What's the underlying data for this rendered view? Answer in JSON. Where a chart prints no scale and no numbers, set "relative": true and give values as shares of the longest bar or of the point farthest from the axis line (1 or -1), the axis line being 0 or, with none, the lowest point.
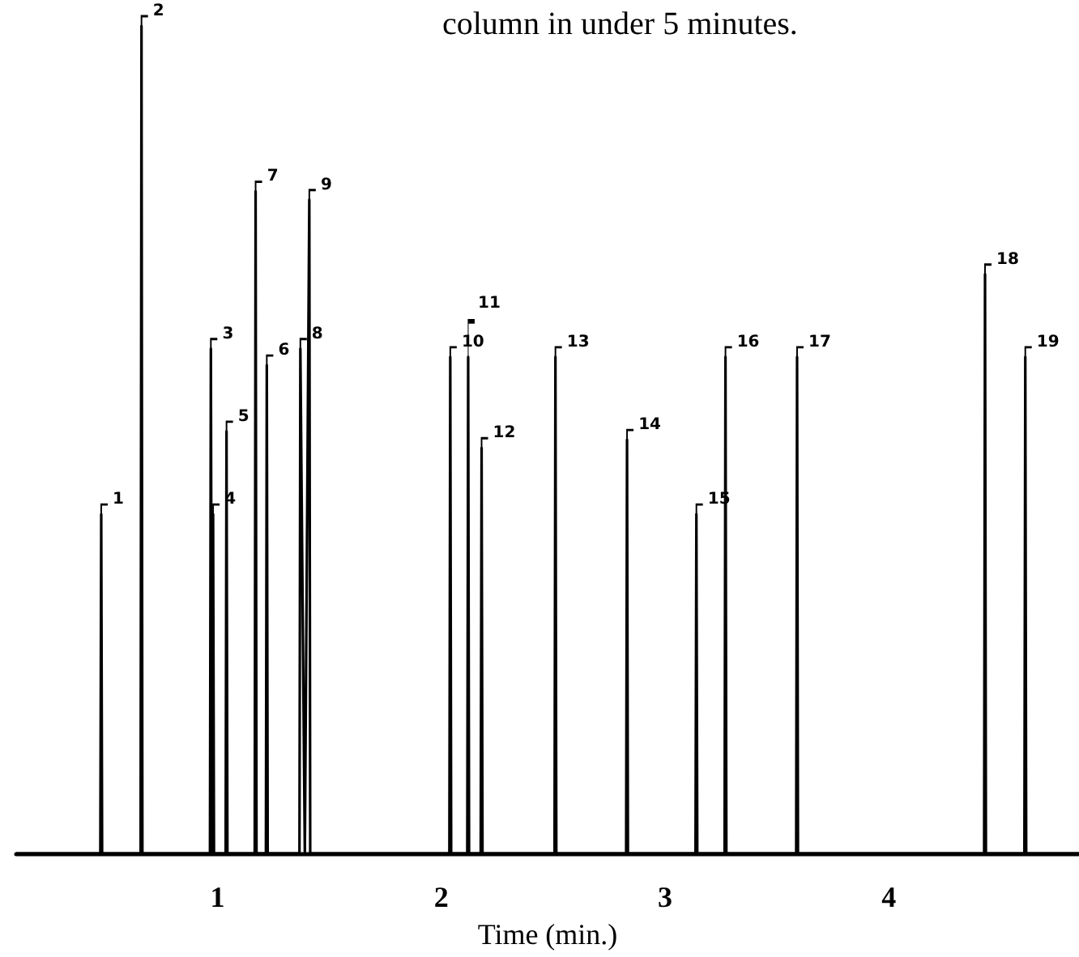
{
  "chart_data": {
    "type": "line",
    "title": "column in under 5 minutes.",
    "xlabel": "Time (min.)",
    "relative": true,
    "color": "#000000",
    "marker": "none",
    "line_style": "solid",
    "grid": false,
    "xlim": [
      0.1,
      4.85
    ],
    "xticks": [
      1,
      2,
      3,
      4
    ],
    "x": [
      0.1,
      0.476,
      0.48,
      0.484,
      0.656,
      0.66,
      0.664,
      0.966,
      0.97,
      0.975,
      0.98,
      0.984,
      1.036,
      1.04,
      1.044,
      1.166,
      1.17,
      1.174,
      1.216,
      1.22,
      1.224,
      1.366,
      1.37,
      1.39,
      1.41,
      1.414,
      2.036,
      2.04,
      2.044,
      2.116,
      2.12,
      2.124,
      2.176,
      2.18,
      2.184,
      2.506,
      2.51,
      2.514,
      2.826,
      2.83,
      2.834,
      3.136,
      3.14,
      3.144,
      3.266,
      3.27,
      3.274,
      3.586,
      3.59,
      3.594,
      4.426,
      4.43,
      4.434,
      4.606,
      4.61,
      4.614,
      4.85
    ],
    "values": [
      0,
      0,
      0.41,
      0,
      0,
      1,
      0,
      0,
      0.61,
      0,
      0.41,
      0,
      0,
      0.51,
      0,
      0,
      0.8,
      0,
      0,
      0.59,
      0,
      0,
      0.61,
      0,
      0.79,
      0,
      0,
      0.6,
      0,
      0,
      0.6,
      0,
      0,
      0.49,
      0,
      0,
      0.6,
      0,
      0,
      0.5,
      0,
      0,
      0.41,
      0,
      0,
      0.6,
      0,
      0,
      0.6,
      0,
      0,
      0.7,
      0,
      0,
      0.6,
      0,
      0
    ],
    "annotations": [
      {
        "text": "1",
        "x": 0.48,
        "y": 0.41
      },
      {
        "text": "2",
        "x": 0.66,
        "y": 1
      },
      {
        "text": "3",
        "x": 0.97,
        "y": 0.61
      },
      {
        "text": "4",
        "x": 0.98,
        "y": 0.41
      },
      {
        "text": "5",
        "x": 1.04,
        "y": 0.51
      },
      {
        "text": "6",
        "x": 1.22,
        "y": 0.59
      },
      {
        "text": "7",
        "x": 1.17,
        "y": 0.8
      },
      {
        "text": "8",
        "x": 1.37,
        "y": 0.61
      },
      {
        "text": "9",
        "x": 1.41,
        "y": 0.79
      },
      {
        "text": "10",
        "x": 2.04,
        "y": 0.6
      },
      {
        "text": "11",
        "x": 2.12,
        "y": 0.6
      },
      {
        "text": "12",
        "x": 2.18,
        "y": 0.49
      },
      {
        "text": "13",
        "x": 2.51,
        "y": 0.6
      },
      {
        "text": "14",
        "x": 2.83,
        "y": 0.5
      },
      {
        "text": "15",
        "x": 3.14,
        "y": 0.41
      },
      {
        "text": "16",
        "x": 3.27,
        "y": 0.6
      },
      {
        "text": "17",
        "x": 3.59,
        "y": 0.6
      },
      {
        "text": "18",
        "x": 4.43,
        "y": 0.7
      },
      {
        "text": "19",
        "x": 4.61,
        "y": 0.6
      }
    ]
  }
}
